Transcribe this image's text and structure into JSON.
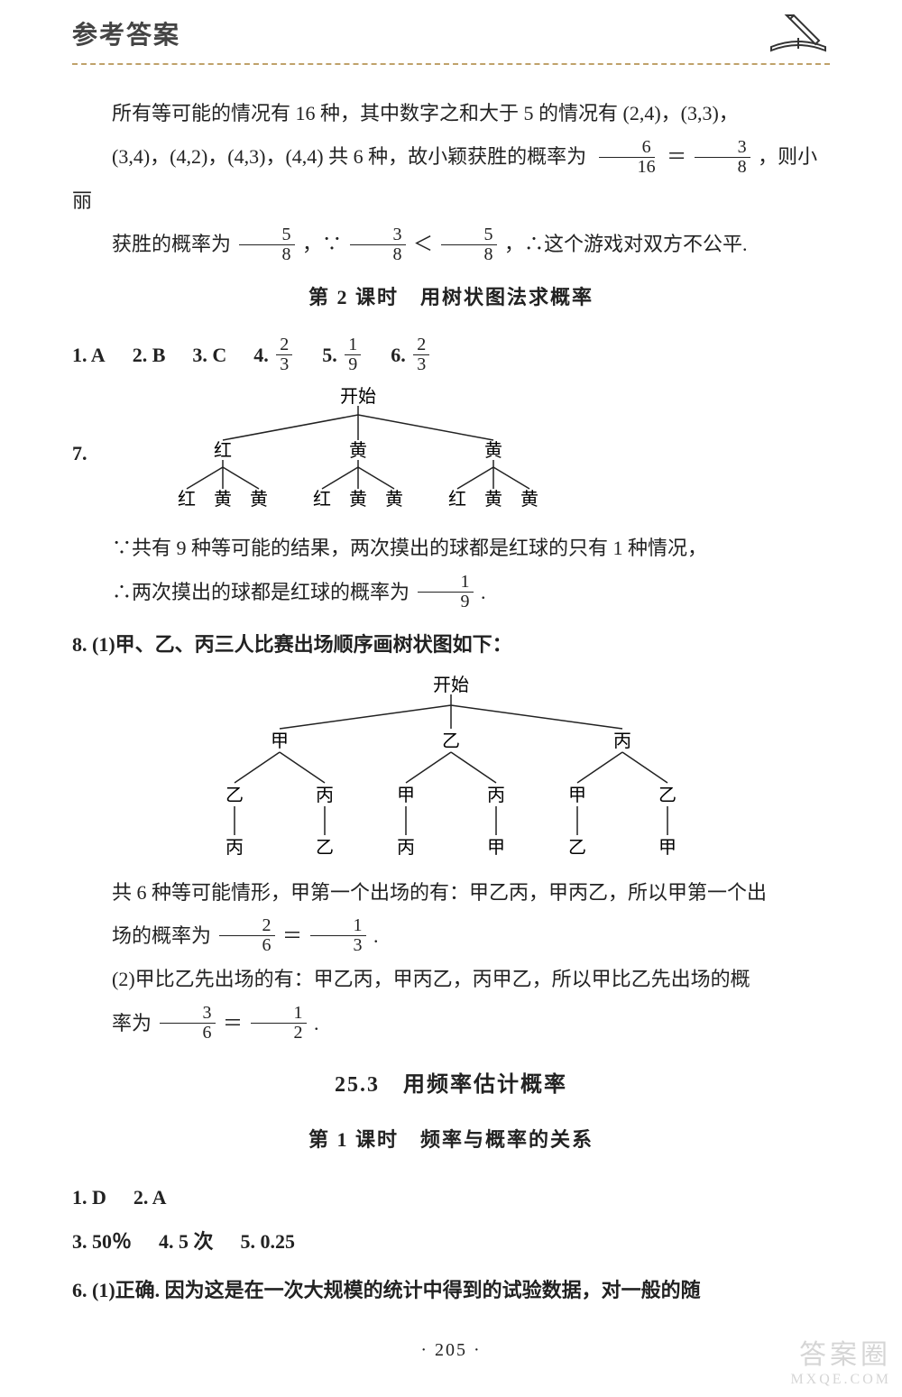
{
  "header": {
    "title": "参考答案"
  },
  "intro": {
    "line1_a": "所有等可能的情况有 16 种，其中数字之和大于 5 的情况有 (2,4)，(3,3)，",
    "line2_a": "(3,4)，(4,2)，(4,3)，(4,4) 共 6 种，故小颖获胜的概率为",
    "frac1_n": "6",
    "frac1_d": "16",
    "eq": "＝",
    "frac2_n": "3",
    "frac2_d": "8",
    "line2_b": "，则小丽",
    "line3_a": "获胜的概率为",
    "frac3_n": "5",
    "frac3_d": "8",
    "mid": "，∵",
    "frac4_n": "3",
    "frac4_d": "8",
    "lt": "＜",
    "frac5_n": "5",
    "frac5_d": "8",
    "end": "，∴这个游戏对双方不公平."
  },
  "lesson1": {
    "title": "第 2 课时　用树状图法求概率"
  },
  "row1": {
    "a1": "1. A",
    "a2": "2. B",
    "a3": "3. C",
    "a4_pre": "4.",
    "a4_n": "2",
    "a4_d": "3",
    "a5_pre": "5.",
    "a5_n": "1",
    "a5_d": "9",
    "a6_pre": "6.",
    "a6_n": "2",
    "a6_d": "3"
  },
  "tree1": {
    "root": "开始",
    "l1": [
      "红",
      "黄",
      "黄"
    ],
    "l2": [
      "红",
      "黄",
      "黄",
      "红",
      "黄",
      "黄",
      "红",
      "黄",
      "黄"
    ]
  },
  "q7": {
    "label": "7.",
    "line1": "∵共有 9 种等可能的结果，两次摸出的球都是红球的只有 1 种情况，",
    "line2_a": "∴两次摸出的球都是红球的概率为",
    "frac_n": "1",
    "frac_d": "9",
    "dot": "."
  },
  "q8": {
    "head": "8. (1)甲、乙、丙三人比赛出场顺序画树状图如下：",
    "root": "开始",
    "l1": [
      "甲",
      "乙",
      "丙"
    ],
    "l2": [
      "乙",
      "丙",
      "甲",
      "丙",
      "甲",
      "乙"
    ],
    "l3": [
      "丙",
      "乙",
      "丙",
      "甲",
      "乙",
      "甲"
    ],
    "p1_a": "共 6 种等可能情形，甲第一个出场的有：甲乙丙，甲丙乙，所以甲第一个出",
    "p1_b_pre": "场的概率为",
    "p1_f1_n": "2",
    "p1_f1_d": "6",
    "p1_eq": "＝",
    "p1_f2_n": "1",
    "p1_f2_d": "3",
    "p1_end": ".",
    "p2_a": "(2)甲比乙先出场的有：甲乙丙，甲丙乙，丙甲乙，所以甲比乙先出场的概",
    "p2_b_pre": "率为",
    "p2_f1_n": "3",
    "p2_f1_d": "6",
    "p2_eq": "＝",
    "p2_f2_n": "1",
    "p2_f2_d": "2",
    "p2_end": "."
  },
  "section2": {
    "title": "25.3　用频率估计概率"
  },
  "lesson2": {
    "title": "第 1 课时　频率与概率的关系"
  },
  "row2a": {
    "a1": "1. D",
    "a2": "2. A"
  },
  "row2b": {
    "a3": "3. 50％",
    "a4": "4. 5 次",
    "a5": "5. 0.25"
  },
  "q6": {
    "text": "6. (1)正确. 因为这是在一次大规模的统计中得到的试验数据，对一般的随"
  },
  "footer": {
    "page": "· 205 ·"
  },
  "watermark": {
    "l1": "答案圈",
    "l2": "MXQE.COM"
  },
  "style": {
    "tree_stroke": "#222",
    "tree_font": "20"
  }
}
